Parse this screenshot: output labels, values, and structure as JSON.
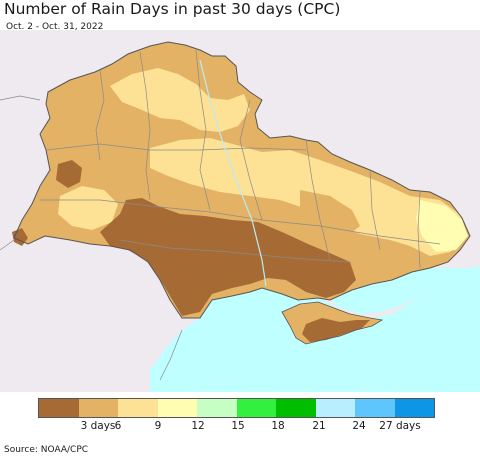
{
  "title": "Number of Rain Days in past 30 days (CPC)",
  "subtitle": "Oct. 2 - Oct. 31, 2022",
  "source": "Source: NOAA/CPC",
  "legend": {
    "colors": [
      "#a66a35",
      "#e3b264",
      "#fde195",
      "#fffdb1",
      "#c6ffc4",
      "#33ef3f",
      "#00bd00",
      "#b8eeff",
      "#5fc6fd",
      "#0d95e6"
    ],
    "labels": [
      "3 days",
      "6",
      "9",
      "12",
      "15",
      "18",
      "21",
      "24",
      "27 days"
    ]
  }
}
